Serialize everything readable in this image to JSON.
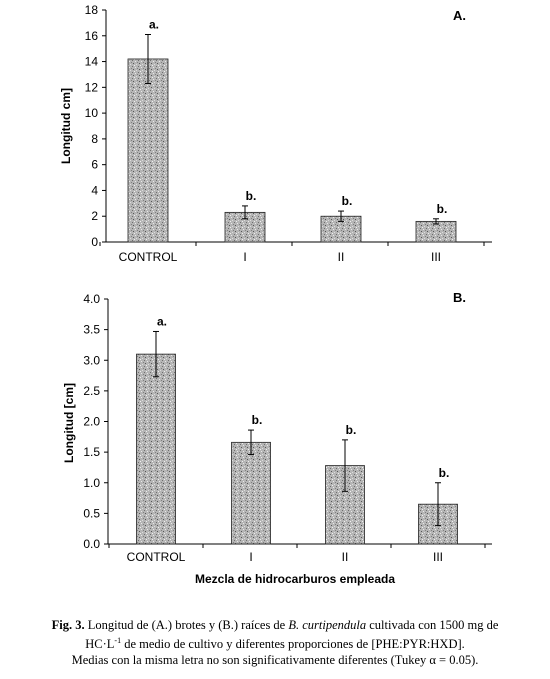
{
  "chart_data": [
    {
      "type": "bar",
      "panel": "A.",
      "ylabel": "Longitud cm]",
      "xlabel": "",
      "categories": [
        "CONTROL",
        "I",
        "II",
        "III"
      ],
      "values": [
        14.2,
        2.3,
        2.0,
        1.6
      ],
      "errors": [
        1.9,
        0.5,
        0.4,
        0.2
      ],
      "letters": [
        "a.",
        "b.",
        "b.",
        "b."
      ],
      "ylim": [
        0,
        18
      ],
      "yticks": [
        "0",
        "2",
        "4",
        "6",
        "8",
        "10",
        "12",
        "14",
        "16",
        "18"
      ],
      "grid": false,
      "legend": "none"
    },
    {
      "type": "bar",
      "panel": "B.",
      "ylabel": "Longitud [cm]",
      "xlabel": "Mezcla de hidrocarburos empleada",
      "categories": [
        "CONTROL",
        "I",
        "II",
        "III"
      ],
      "values": [
        3.1,
        1.66,
        1.28,
        0.65
      ],
      "errors": [
        0.37,
        0.2,
        0.42,
        0.35
      ],
      "letters": [
        "a.",
        "b.",
        "b.",
        "b."
      ],
      "ylim": [
        0,
        4
      ],
      "yticks": [
        "0.0",
        "0.5",
        "1.0",
        "1.5",
        "2.0",
        "2.5",
        "3.0",
        "3.5",
        "4.0"
      ],
      "grid": false,
      "legend": "none"
    }
  ],
  "colors": {
    "bar_fill": "#b5b5b5",
    "bar_stroke": "#222222",
    "axis": "#000000"
  },
  "caption": {
    "fig_label": "Fig. 3.",
    "line1_a": " Longitud de (A.) brotes y (B.) raíces de ",
    "species": "B. curtipendula",
    "line1_b": " cultivada con 1500 mg de",
    "line2_a": "HC·L",
    "line2_sup": "-1",
    "line2_b": " de medio de cultivo y diferentes proporciones de [PHE:PYR:HXD].",
    "line3": "Medias con la misma letra no son significativamente diferentes (Tukey α = 0.05)."
  }
}
